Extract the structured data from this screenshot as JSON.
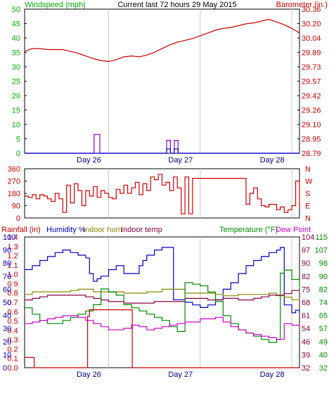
{
  "chart_data": [
    {
      "type": "line",
      "title": "Current last 72 hours 29 May 2015",
      "ylabel_left": "Windspeed (mph)",
      "ylabel_right": "Barometer (in.)",
      "x_tick_labels": [
        "Day 26",
        "Day 27",
        "Day 28"
      ],
      "x_day_starts": [
        22,
        46,
        70
      ],
      "xlim": [
        0,
        72
      ],
      "ylim_left": [
        0,
        50
      ],
      "y_ticks_left": [
        "0",
        "5",
        "10",
        "15",
        "20",
        "25",
        "30",
        "35",
        "40",
        "45",
        "50"
      ],
      "ylim_right": [
        28.79,
        30.36
      ],
      "y_ticks_right": [
        "28.79",
        "28.95",
        "29.10",
        "29.26",
        "29.42",
        "29.57",
        "29.73",
        "29.89",
        "30.04",
        "30.20",
        "30.36"
      ],
      "colors": {
        "wind": "#0000cc",
        "gust": "#8800cc",
        "barometer": "#cc0000",
        "left_axis": "#00aa00",
        "right_axis": "#cc0000"
      },
      "series": [
        {
          "key": "barometer",
          "axis": "right",
          "x": [
            0,
            2,
            4,
            6,
            8,
            10,
            12,
            14,
            16,
            18,
            20,
            22,
            24,
            26,
            28,
            30,
            32,
            34,
            36,
            38,
            40,
            42,
            44,
            46,
            48,
            50,
            52,
            54,
            56,
            58,
            60,
            62,
            64,
            66,
            68,
            70,
            72
          ],
          "y": [
            29.9,
            29.93,
            29.93,
            29.92,
            29.92,
            29.92,
            29.9,
            29.88,
            29.85,
            29.82,
            29.8,
            29.79,
            29.81,
            29.84,
            29.85,
            29.84,
            29.86,
            29.89,
            29.93,
            29.97,
            30.0,
            30.02,
            30.04,
            30.07,
            30.1,
            30.13,
            30.15,
            30.16,
            30.18,
            30.2,
            30.21,
            30.23,
            30.25,
            30.22,
            30.19,
            30.15,
            30.1
          ]
        },
        {
          "key": "gust",
          "axis": "left",
          "x": [
            0,
            18,
            18.2,
            19.5,
            19.7,
            37,
            37.2,
            38,
            38.2,
            39,
            39.2,
            40,
            40.2,
            41.5,
            41.7,
            72
          ],
          "y": [
            0,
            0,
            6.5,
            6.5,
            0,
            0,
            4.5,
            4.5,
            0,
            0,
            4.5,
            4.5,
            0,
            0,
            0,
            0
          ]
        },
        {
          "key": "wind",
          "axis": "left",
          "x": [
            0,
            37,
            37.2,
            38,
            38.2,
            39,
            39.2,
            40,
            40.2,
            72
          ],
          "y": [
            0,
            0,
            1.5,
            1.5,
            0,
            0,
            1.5,
            1.5,
            0,
            0
          ]
        }
      ]
    },
    {
      "type": "line",
      "ylim": [
        0,
        360
      ],
      "y_ticks_left": [
        "0",
        "90",
        "180",
        "270",
        "360"
      ],
      "y_ticks_right": [
        "N",
        "E",
        "S",
        "W",
        "N"
      ],
      "colors": {
        "direction": "#cc0000",
        "left_axis": "#cc0000",
        "right_axis": "#cc0000"
      },
      "series": [
        {
          "key": "direction",
          "x": [
            0,
            1,
            2,
            3,
            4,
            5,
            6,
            7,
            8,
            9,
            10,
            11,
            12,
            13,
            14,
            15,
            16,
            17,
            18,
            19,
            20,
            21,
            22,
            23,
            24,
            25,
            26,
            27,
            28,
            29,
            30,
            31,
            32,
            33,
            34,
            35,
            36,
            37,
            38,
            39,
            40,
            41,
            42,
            43,
            44,
            45,
            46,
            47,
            48,
            49,
            50,
            51,
            52,
            53,
            54,
            55,
            56,
            57,
            58,
            59,
            60,
            61,
            62,
            63,
            64,
            65,
            66,
            67,
            68,
            69,
            70,
            71,
            72
          ],
          "y": [
            160,
            150,
            170,
            140,
            170,
            160,
            140,
            120,
            180,
            140,
            40,
            240,
            110,
            250,
            200,
            90,
            200,
            160,
            230,
            150,
            200,
            180,
            150,
            140,
            210,
            180,
            240,
            180,
            220,
            260,
            170,
            250,
            200,
            300,
            280,
            320,
            240,
            260,
            200,
            300,
            220,
            30,
            300,
            30,
            290,
            290,
            290,
            290,
            290,
            290,
            290,
            290,
            290,
            290,
            290,
            290,
            290,
            290,
            100,
            180,
            220,
            140,
            90,
            80,
            100,
            100,
            60,
            80,
            40,
            60,
            90,
            270,
            60
          ]
        }
      ]
    },
    {
      "type": "line",
      "ylabel_left": "Rainfall (in)",
      "legend": [
        "Humidity %",
        "Indoor hum",
        "Indoor temp",
        "Temperature (°F)",
        "Dew Point"
      ],
      "xlim": [
        0,
        72
      ],
      "x_tick_labels": [
        "Day 26",
        "Day 27",
        "Day 28"
      ],
      "x_day_starts": [
        22,
        46,
        70
      ],
      "rain_ticks": [
        "0.0",
        "0.1",
        "0.2",
        "0.3",
        "0.4",
        "0.5",
        "0.6",
        "0.7",
        "0.8",
        "0.9",
        "1.0",
        "1.1",
        "1.2",
        "1.3",
        "1.4"
      ],
      "hum_ticks": [
        "0",
        "10",
        "20",
        "30",
        "40",
        "50",
        "60",
        "70",
        "80",
        "90",
        "100"
      ],
      "temp_ticks_left": [
        "32",
        "39",
        "46",
        "54",
        "61",
        "68",
        "75",
        "82",
        "90",
        "97",
        "104"
      ],
      "temp_ticks_right": [
        "32",
        "40",
        "49",
        "57",
        "65",
        "74",
        "82",
        "90",
        "98",
        "107",
        "115"
      ],
      "ylim_temp": [
        32,
        115
      ],
      "ylim_hum": [
        0,
        100
      ],
      "ylim_rain": [
        0,
        1.4
      ],
      "colors": {
        "rain": "#cc0000",
        "humidity": "#0000cc",
        "indoor_hum": "#888800",
        "indoor_temp": "#880044",
        "temperature": "#008800",
        "dew_point": "#cc00cc"
      },
      "series": [
        {
          "key": "humidity",
          "axis": "hum",
          "x": [
            0,
            2,
            4,
            6,
            8,
            10,
            12,
            14,
            16,
            17,
            18,
            19,
            20,
            22,
            24,
            26,
            28,
            30,
            31,
            32,
            34,
            36,
            38,
            39,
            40,
            42,
            44,
            46,
            48,
            50,
            52,
            54,
            56,
            58,
            60,
            62,
            64,
            66,
            67,
            68,
            70,
            71,
            72
          ],
          "y": [
            75,
            78,
            82,
            85,
            88,
            90,
            88,
            86,
            84,
            72,
            66,
            68,
            70,
            75,
            78,
            72,
            72,
            78,
            82,
            86,
            90,
            92,
            92,
            52,
            52,
            50,
            48,
            46,
            48,
            52,
            60,
            65,
            72,
            78,
            82,
            85,
            88,
            90,
            92,
            48,
            42,
            44,
            42
          ]
        },
        {
          "key": "indoor_hum",
          "axis": "hum",
          "x": [
            0,
            2,
            4,
            6,
            8,
            10,
            12,
            14,
            16,
            18,
            20,
            22,
            24,
            26,
            28,
            30,
            32,
            34,
            36,
            38,
            40,
            42,
            44,
            46,
            48,
            50,
            52,
            54,
            56,
            58,
            60,
            62,
            64,
            66,
            68,
            70,
            72
          ],
          "y": [
            56,
            58,
            58,
            58,
            58,
            58,
            59,
            60,
            60,
            58,
            58,
            58,
            58,
            57,
            57,
            57,
            58,
            58,
            60,
            60,
            60,
            57,
            57,
            57,
            57,
            56,
            55,
            55,
            56,
            56,
            56,
            56,
            57,
            55,
            54,
            52,
            53
          ]
        },
        {
          "key": "indoor_temp",
          "axis": "temp",
          "x": [
            0,
            2,
            4,
            6,
            8,
            10,
            12,
            14,
            16,
            18,
            20,
            22,
            24,
            26,
            28,
            30,
            32,
            34,
            36,
            38,
            40,
            42,
            44,
            46,
            48,
            50,
            52,
            54,
            56,
            58,
            60,
            62,
            64,
            66,
            68,
            70,
            72
          ],
          "y": [
            75,
            76,
            77,
            78,
            78,
            78,
            78,
            78,
            77,
            76,
            75,
            74,
            74,
            73,
            73,
            73,
            73,
            74,
            74,
            74,
            74,
            76,
            76,
            76,
            75,
            75,
            76,
            76,
            75,
            75,
            76,
            77,
            78,
            78,
            79,
            81,
            82
          ]
        },
        {
          "key": "temperature",
          "axis": "temp",
          "x": [
            0,
            2,
            4,
            6,
            8,
            10,
            12,
            14,
            16,
            18,
            20,
            22,
            24,
            26,
            28,
            30,
            32,
            34,
            36,
            38,
            40,
            42,
            44,
            46,
            48,
            50,
            52,
            54,
            56,
            58,
            60,
            62,
            64,
            66,
            67,
            68,
            70,
            72
          ],
          "y": [
            70,
            66,
            62,
            60,
            60,
            62,
            64,
            66,
            68,
            72,
            82,
            80,
            78,
            72,
            70,
            68,
            66,
            64,
            62,
            58,
            55,
            86,
            85,
            84,
            80,
            74,
            65,
            60,
            56,
            54,
            52,
            50,
            48,
            50,
            92,
            94,
            88,
            80
          ]
        },
        {
          "key": "dew_point",
          "axis": "temp",
          "x": [
            0,
            2,
            4,
            6,
            8,
            10,
            12,
            14,
            16,
            18,
            20,
            22,
            24,
            26,
            28,
            30,
            32,
            34,
            36,
            38,
            40,
            42,
            44,
            46,
            48,
            50,
            52,
            54,
            56,
            58,
            60,
            62,
            64,
            66,
            68,
            70,
            72
          ],
          "y": [
            60,
            61,
            62,
            63,
            64,
            65,
            65,
            64,
            62,
            60,
            58,
            56,
            56,
            57,
            59,
            58,
            56,
            57,
            58,
            59,
            60,
            61,
            61,
            63,
            63,
            64,
            61,
            58,
            56,
            54,
            53,
            52,
            51,
            50,
            60,
            59,
            58
          ]
        },
        {
          "key": "rain",
          "axis": "rain",
          "x": [
            0,
            2,
            2.5,
            8,
            16,
            16.5,
            17,
            28,
            28.2,
            72
          ],
          "y": [
            0.11,
            0.11,
            0.0,
            0.0,
            0.0,
            0.55,
            0.62,
            0.62,
            0.0,
            0.0
          ]
        }
      ]
    }
  ]
}
